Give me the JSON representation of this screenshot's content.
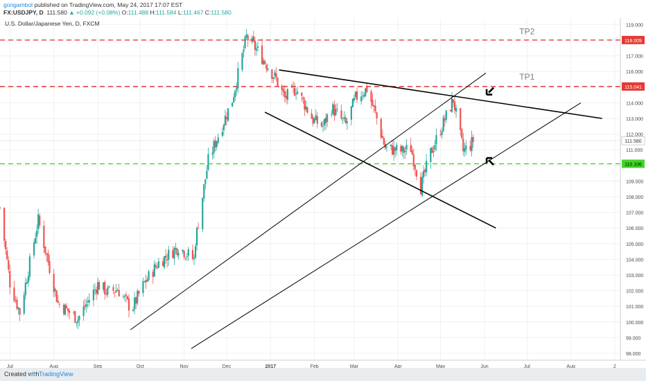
{
  "header": {
    "author": "gongambol",
    "published": "published on TradingView.com, May 24, 2017 17:07 EST",
    "symbol": "FX:USDJPY, D",
    "last": "111.580",
    "change": "▲ +0.092 (+0.08%)",
    "ohlc": {
      "o_label": "O:",
      "o": "111.488",
      "h_label": "H:",
      "h": "111.584",
      "l_label": "L:",
      "l": "111.467",
      "c_label": "C:",
      "c": "111.580"
    }
  },
  "footer": {
    "created": "Created with",
    "brand": "TradingView"
  },
  "colors": {
    "up": "#26a69a",
    "down": "#ef5350",
    "tp_line": "#e53935",
    "support_line": "#43d629",
    "trend": "#000000",
    "grid": "#eef0f3"
  },
  "chart_data": {
    "type": "candlestick",
    "title": "U.S. Dollar/Japanese Yen, D, FXCM",
    "x_range": [
      "2017-06-24 (prev year)",
      "2017-09-01"
    ],
    "x_range_dates": [
      "2016-06-24",
      "2017-09-01"
    ],
    "ylim": [
      97.6,
      119.6
    ],
    "y_ticks": [
      98.0,
      99.0,
      100.0,
      101.0,
      102.0,
      103.0,
      104.0,
      105.0,
      106.0,
      107.0,
      108.0,
      109.0,
      110.0,
      111.0,
      112.0,
      113.0,
      114.0,
      115.0,
      116.0,
      117.0,
      118.0,
      119.0
    ],
    "x_ticks": [
      {
        "label": "Jul",
        "date": "2016-07-01"
      },
      {
        "label": "Aug",
        "date": "2016-08-01"
      },
      {
        "label": "Sep",
        "date": "2016-09-01"
      },
      {
        "label": "Oct",
        "date": "2016-10-01"
      },
      {
        "label": "Nov",
        "date": "2016-11-01"
      },
      {
        "label": "Dec",
        "date": "2016-12-01"
      },
      {
        "label": "2017",
        "date": "2017-01-01"
      },
      {
        "label": "Feb",
        "date": "2017-02-01"
      },
      {
        "label": "Mar",
        "date": "2017-03-01"
      },
      {
        "label": "Apr",
        "date": "2017-04-01"
      },
      {
        "label": "May",
        "date": "2017-05-01"
      },
      {
        "label": "Jun",
        "date": "2017-06-01"
      },
      {
        "label": "Jul",
        "date": "2017-07-01"
      },
      {
        "label": "Aug",
        "date": "2017-08-01"
      },
      {
        "label": "2",
        "date": "2017-09-01"
      }
    ],
    "price_anchors": [
      [
        "2016-06-24",
        107.3
      ],
      [
        "2016-07-01",
        102.5
      ],
      [
        "2016-07-08",
        100.6
      ],
      [
        "2016-07-21",
        106.5
      ],
      [
        "2016-08-04",
        101.2
      ],
      [
        "2016-08-18",
        100.2
      ],
      [
        "2016-09-01",
        102.4
      ],
      [
        "2016-09-08",
        101.9
      ],
      [
        "2016-09-15",
        102.1
      ],
      [
        "2016-09-25",
        100.8
      ],
      [
        "2016-10-04",
        102.5
      ],
      [
        "2016-10-14",
        103.8
      ],
      [
        "2016-10-28",
        104.8
      ],
      [
        "2016-11-08",
        104.0
      ],
      [
        "2016-11-09",
        105.2
      ],
      [
        "2016-11-18",
        110.3
      ],
      [
        "2016-12-05",
        114.2
      ],
      [
        "2016-12-15",
        118.2
      ],
      [
        "2016-12-23",
        117.3
      ],
      [
        "2017-01-05",
        115.5
      ],
      [
        "2017-01-11",
        114.3
      ],
      [
        "2017-01-19",
        114.9
      ],
      [
        "2017-01-31",
        112.9
      ],
      [
        "2017-02-07",
        112.5
      ],
      [
        "2017-02-13",
        113.7
      ],
      [
        "2017-02-23",
        112.6
      ],
      [
        "2017-03-02",
        114.3
      ],
      [
        "2017-03-10",
        114.9
      ],
      [
        "2017-03-16",
        113.3
      ],
      [
        "2017-03-23",
        111.1
      ],
      [
        "2017-04-04",
        110.9
      ],
      [
        "2017-04-10",
        111.1
      ],
      [
        "2017-04-17",
        108.6
      ],
      [
        "2017-04-24",
        110.8
      ],
      [
        "2017-05-01",
        112.3
      ],
      [
        "2017-05-10",
        114.2
      ],
      [
        "2017-05-17",
        110.9
      ],
      [
        "2017-05-22",
        111.3
      ],
      [
        "2017-05-24",
        111.58
      ]
    ],
    "horizontal_lines": [
      {
        "label": "118.009",
        "value": 118.009,
        "style": "dashed",
        "color": "#e53935"
      },
      {
        "label": "115.041",
        "value": 115.041,
        "style": "dashed",
        "color": "#e53935"
      },
      {
        "label": "110.106",
        "value": 110.106,
        "style": "dashed",
        "color": "#43d629"
      }
    ],
    "current_price": {
      "label": "111.580",
      "value": 111.58
    },
    "trend_lines": [
      {
        "name": "upper-wedge",
        "from": [
          "2017-01-07",
          116.1
        ],
        "to": [
          "2017-08-23",
          113.0
        ],
        "color": "#000000"
      },
      {
        "name": "lower-wedge",
        "from": [
          "2016-12-28",
          113.4
        ],
        "to": [
          "2017-06-09",
          106.0
        ],
        "color": "#000000"
      },
      {
        "name": "channel-upper",
        "from": [
          "2016-09-24",
          99.5
        ],
        "to": [
          "2017-06-02",
          115.9
        ],
        "color": "#000000"
      },
      {
        "name": "channel-lower",
        "from": [
          "2016-11-06",
          98.3
        ],
        "to": [
          "2017-08-08",
          114.0
        ],
        "color": "#000000"
      }
    ],
    "annotations": [
      {
        "text": "TP2",
        "at": [
          "2017-07-01",
          118.6
        ]
      },
      {
        "text": "TP1",
        "at": [
          "2017-07-01",
          115.7
        ]
      }
    ],
    "arrows": [
      {
        "name": "down-arrow",
        "at": [
          "2017-06-04",
          114.7
        ],
        "direction": "down-left"
      },
      {
        "name": "up-arrow",
        "at": [
          "2017-06-04",
          110.3
        ],
        "direction": "up-left"
      }
    ]
  }
}
